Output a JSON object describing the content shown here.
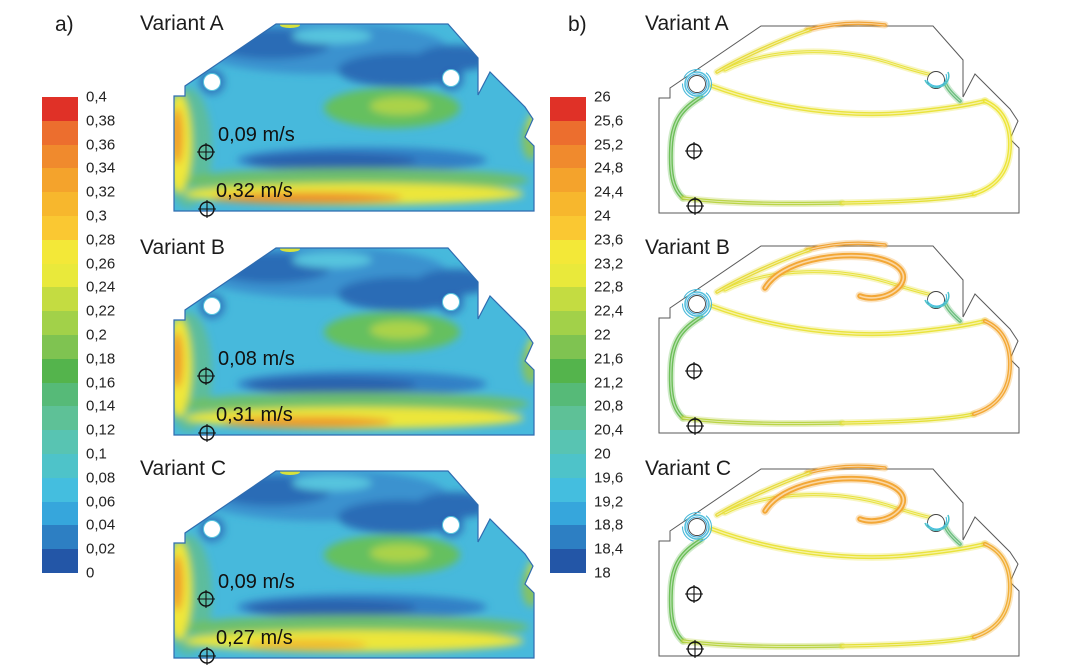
{
  "figure": {
    "panel_a_label": "a)",
    "panel_b_label": "b)"
  },
  "panels": {
    "a": {
      "variants": [
        {
          "name": "Variant A",
          "annotations": [
            {
              "value": "0,09 m/s"
            },
            {
              "value": "0,32 m/s"
            }
          ]
        },
        {
          "name": "Variant B",
          "annotations": [
            {
              "value": "0,08 m/s"
            },
            {
              "value": "0,31 m/s"
            }
          ]
        },
        {
          "name": "Variant C",
          "annotations": [
            {
              "value": "0,09 m/s"
            },
            {
              "value": "0,27 m/s"
            }
          ]
        }
      ],
      "colorbar_labels": [
        "0,4",
        "0,38",
        "0,36",
        "0,34",
        "0,32",
        "0,3",
        "0,28",
        "0,26",
        "0,24",
        "0,22",
        "0,2",
        "0,18",
        "0,16",
        "0,14",
        "0,12",
        "0,1",
        "0,08",
        "0,06",
        "0,04",
        "0,02",
        "0"
      ]
    },
    "b": {
      "variants": [
        {
          "name": "Variant A"
        },
        {
          "name": "Variant B"
        },
        {
          "name": "Variant C"
        }
      ],
      "colorbar_labels": [
        "26",
        "25,6",
        "25,2",
        "24,8",
        "24,4",
        "24",
        "23,6",
        "23,2",
        "22,8",
        "22,4",
        "22",
        "21,6",
        "21,2",
        "20,8",
        "20,4",
        "20",
        "19,6",
        "19,2",
        "18,8",
        "18,4",
        "18"
      ]
    }
  },
  "chart_data": [
    {
      "type": "heatmap",
      "title": "a) Air velocity contour fields in cabin cross-section",
      "variants": [
        {
          "name": "Variant A",
          "probe_values": [
            "0,09 m/s",
            "0,32 m/s"
          ]
        },
        {
          "name": "Variant B",
          "probe_values": [
            "0,08 m/s",
            "0,31 m/s"
          ]
        },
        {
          "name": "Variant C",
          "probe_values": [
            "0,09 m/s",
            "0,27 m/s"
          ]
        }
      ],
      "colorbar": {
        "min": 0,
        "max": 0.4,
        "step": 0.02,
        "orientation": "vertical",
        "max_at": "top",
        "tick_labels": [
          "0,4",
          "0,38",
          "0,36",
          "0,34",
          "0,32",
          "0,3",
          "0,28",
          "0,26",
          "0,24",
          "0,22",
          "0,2",
          "0,18",
          "0,16",
          "0,14",
          "0,12",
          "0,1",
          "0,08",
          "0,06",
          "0,04",
          "0,02",
          "0"
        ],
        "colors_top_to_bottom": [
          "#e03127",
          "#ec6e2e",
          "#f08a2d",
          "#f4a32c",
          "#f7b72d",
          "#fac832",
          "#f3e838",
          "#e9e93b",
          "#c4dc41",
          "#a2d149",
          "#7fc351",
          "#54b44c",
          "#56ba78",
          "#5ec197",
          "#58c4b2",
          "#4ec3c9",
          "#44bedf",
          "#36a6dc",
          "#2d7fc3",
          "#2356a7"
        ]
      }
    },
    {
      "type": "line",
      "title": "b) Airflow streamlines colored by temperature",
      "variants": [
        {
          "name": "Variant A"
        },
        {
          "name": "Variant B"
        },
        {
          "name": "Variant C"
        }
      ],
      "colorbar": {
        "min": 18,
        "max": 26,
        "step": 0.4,
        "orientation": "vertical",
        "max_at": "top",
        "tick_labels": [
          "26",
          "25,6",
          "25,2",
          "24,8",
          "24,4",
          "24",
          "23,6",
          "23,2",
          "22,8",
          "22,4",
          "22",
          "21,6",
          "21,2",
          "20,8",
          "20,4",
          "20",
          "19,6",
          "19,2",
          "18,8",
          "18,4",
          "18"
        ],
        "colors_top_to_bottom": [
          "#e03127",
          "#ec6e2e",
          "#f08a2d",
          "#f4a32c",
          "#f7b72d",
          "#fac832",
          "#f3e838",
          "#e9e93b",
          "#c4dc41",
          "#a2d149",
          "#7fc351",
          "#54b44c",
          "#56ba78",
          "#5ec197",
          "#58c4b2",
          "#4ec3c9",
          "#44bedf",
          "#36a6dc",
          "#2d7fc3",
          "#2356a7"
        ]
      }
    }
  ]
}
